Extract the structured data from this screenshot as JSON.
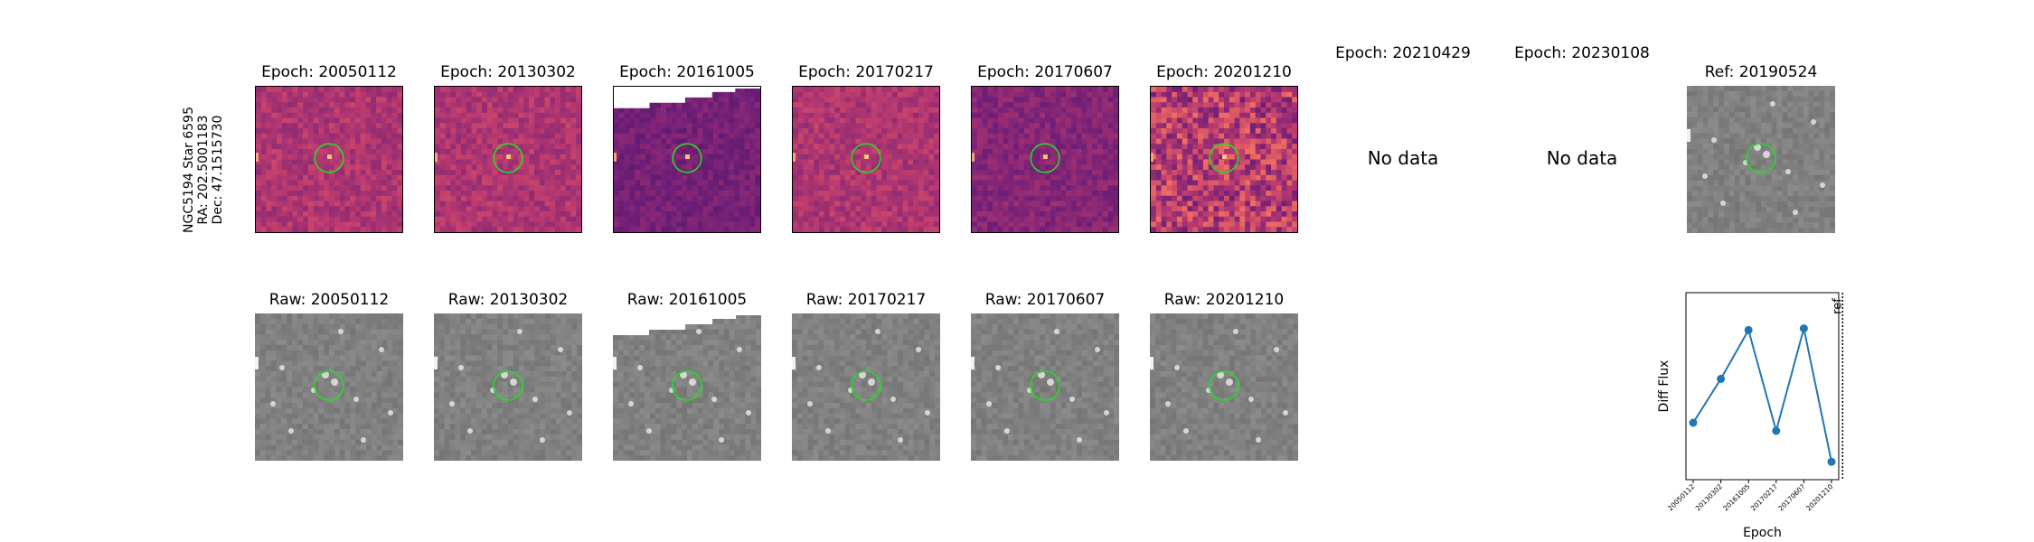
{
  "row_label": [
    "NGC5194 Star 6595",
    "RA: 202.5001183",
    "Dec: 47.1515730"
  ],
  "diff_titles": [
    "Epoch: 20050112",
    "Epoch: 20130302",
    "Epoch: 20161005",
    "Epoch: 20170217",
    "Epoch: 20170607",
    "Epoch: 20201210",
    "Epoch: 20210429",
    "Epoch: 20230108",
    "Ref: 20190524"
  ],
  "raw_titles": [
    "Raw: 20050112",
    "Raw: 20130302",
    "Raw: 20161005",
    "Raw: 20170217",
    "Raw: 20170607",
    "Raw: 20201210"
  ],
  "no_data_text": "No data",
  "colors": {
    "circle": "#22dd22",
    "line": "#1f77b4",
    "magma_mid": "#c0426f",
    "magma_dark": "#5a1a7a",
    "raw_gray": "#8a8a8a"
  },
  "chart_data": {
    "type": "line",
    "xlabel": "Epoch",
    "ylabel": "Diff Flux",
    "categories": [
      "20050112",
      "20130302",
      "20161005",
      "20170217",
      "20170607",
      "20201210"
    ],
    "values": [
      0.15,
      0.42,
      0.72,
      0.1,
      0.73,
      -0.09
    ],
    "ylim": [
      -0.2,
      0.95
    ],
    "vline": {
      "label": "ref",
      "position": 5.5,
      "style": "dotted"
    },
    "grid": false
  }
}
